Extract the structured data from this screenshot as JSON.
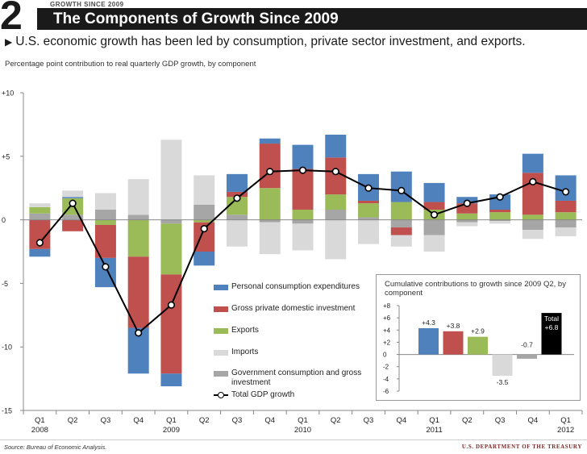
{
  "header": {
    "slide_number": "2",
    "kicker": "GROWTH SINCE 2009",
    "title": "The Components of Growth Since 2009",
    "headline": "U.S. economic growth has been led by consumption, private sector investment, and exports.",
    "subtitle": "Percentage point contribution to real quarterly GDP growth, by component"
  },
  "colors": {
    "consumption": "#4f81bd",
    "investment": "#c0504d",
    "exports": "#9bbb59",
    "imports": "#d9d9d9",
    "government": "#a6a6a6",
    "total": "#000000"
  },
  "legend": [
    {
      "key": "consumption",
      "label": "Personal consumption expenditures"
    },
    {
      "key": "investment",
      "label": "Gross private domestic investment"
    },
    {
      "key": "exports",
      "label": "Exports"
    },
    {
      "key": "imports",
      "label": "Imports"
    },
    {
      "key": "government",
      "label": "Government consumption and gross investment"
    },
    {
      "key": "total",
      "label": "Total GDP growth"
    }
  ],
  "chart_data": {
    "type": "bar",
    "stacked": true,
    "title": "Percentage point contribution to real quarterly GDP growth, by component",
    "ylim": [
      -15,
      10
    ],
    "yticks": [
      10,
      5,
      0,
      -5,
      -10,
      -15
    ],
    "ytick_labels": [
      "+10",
      "+5",
      "0",
      "-5",
      "-10",
      "-15"
    ],
    "categories": [
      "Q1",
      "Q2",
      "Q3",
      "Q4",
      "Q1",
      "Q2",
      "Q3",
      "Q4",
      "Q1",
      "Q2",
      "Q3",
      "Q4",
      "Q1",
      "Q2",
      "Q3",
      "Q4",
      "Q1"
    ],
    "year_labels": [
      {
        "index": 0,
        "label": "2008"
      },
      {
        "index": 4,
        "label": "2009"
      },
      {
        "index": 8,
        "label": "2010"
      },
      {
        "index": 12,
        "label": "2011"
      },
      {
        "index": 16,
        "label": "2012"
      }
    ],
    "series": [
      {
        "key": "government",
        "name": "Government consumption and gross investment",
        "values": [
          0.5,
          0.4,
          0.8,
          0.4,
          -0.3,
          1.2,
          0.4,
          -0.2,
          -0.3,
          0.8,
          0.2,
          -0.6,
          -1.2,
          -0.2,
          -0.1,
          -0.8,
          -0.6
        ]
      },
      {
        "key": "exports",
        "name": "Exports",
        "values": [
          0.5,
          1.3,
          -0.4,
          -2.9,
          -4.0,
          -0.2,
          1.4,
          2.5,
          0.8,
          1.2,
          1.1,
          1.4,
          0.8,
          0.5,
          0.6,
          0.4,
          0.6
        ]
      },
      {
        "key": "investment",
        "name": "Gross private domestic investment",
        "values": [
          -2.3,
          -0.9,
          -2.6,
          -5.6,
          -7.8,
          -2.3,
          0.4,
          3.5,
          3.2,
          2.9,
          0.2,
          -0.6,
          0.6,
          0.8,
          0.2,
          3.3,
          0.9
        ]
      },
      {
        "key": "consumption",
        "name": "Personal consumption expenditures",
        "values": [
          -0.6,
          0.1,
          -2.3,
          -3.6,
          -1.0,
          -1.1,
          1.4,
          0.4,
          1.9,
          1.8,
          2.1,
          2.4,
          1.5,
          0.5,
          1.2,
          1.5,
          2.0
        ]
      },
      {
        "key": "imports",
        "name": "Imports",
        "values": [
          0.3,
          0.5,
          1.3,
          2.8,
          6.3,
          2.3,
          -2.1,
          -2.5,
          -2.1,
          -3.1,
          -1.9,
          -0.9,
          -1.3,
          -0.3,
          -0.2,
          -0.7,
          -0.7
        ]
      }
    ],
    "total_gdp": [
      -1.8,
      1.3,
      -3.7,
      -8.9,
      -6.7,
      -0.7,
      1.7,
      3.8,
      3.9,
      3.8,
      2.5,
      2.3,
      0.4,
      1.3,
      1.8,
      3.0,
      2.2
    ],
    "inset": {
      "type": "bar",
      "title": "Cumulative contributions to growth since 2009 Q2, by component",
      "ylim": [
        -6,
        8
      ],
      "yticks": [
        8,
        6,
        4,
        2,
        0,
        -2,
        -4,
        -6
      ],
      "ytick_labels": [
        "+8",
        "+6",
        "+4",
        "+2",
        "0",
        "-2",
        "-4",
        "-6"
      ],
      "bars": [
        {
          "key": "consumption",
          "value": 4.3,
          "label": "+4.3"
        },
        {
          "key": "investment",
          "value": 3.8,
          "label": "+3.8"
        },
        {
          "key": "exports",
          "value": 2.9,
          "label": "+2.9"
        },
        {
          "key": "imports",
          "value": -3.5,
          "label": "-3.5"
        },
        {
          "key": "government",
          "value": -0.7,
          "label": "-0.7"
        },
        {
          "key": "total",
          "value": 6.8,
          "label": "+6.8",
          "caption": "Total"
        }
      ]
    }
  },
  "footer": {
    "source": "Source: Bureau of Economic Analysis.",
    "department": "U.S. DEPARTMENT OF THE TREASURY"
  }
}
